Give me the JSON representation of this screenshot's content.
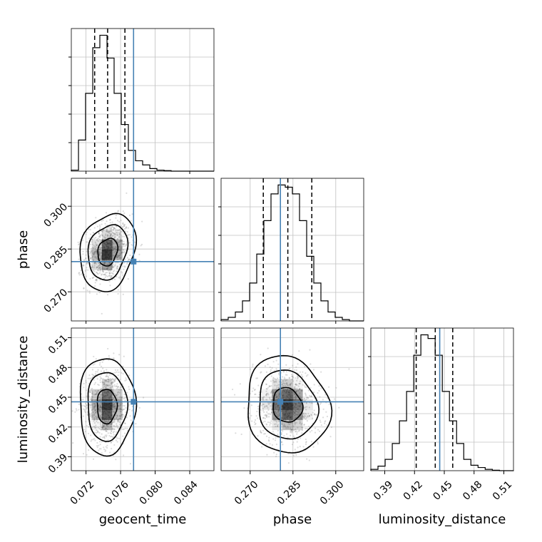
{
  "chart_data": {
    "type": "corner",
    "params": [
      "geocent_time",
      "phase",
      "luminosity_distance"
    ],
    "labels": {
      "geocent_time": "geocent_time",
      "phase": "phase",
      "luminosity_distance": "luminosity_distance"
    },
    "ranges": {
      "geocent_time": [
        0.0703,
        0.0868
      ],
      "phase": [
        0.2598,
        0.3098
      ],
      "luminosity_distance": [
        0.376,
        0.5197
      ]
    },
    "ticks": {
      "geocent_time": [
        0.072,
        0.076,
        0.08,
        0.084
      ],
      "phase": [
        0.27,
        0.285,
        0.3
      ],
      "luminosity_distance": [
        0.39,
        0.42,
        0.45,
        0.48,
        0.51
      ]
    },
    "tick_labels": {
      "geocent_time": [
        "0.072",
        "0.076",
        "0.080",
        "0.084"
      ],
      "phase": [
        "0.270",
        "0.285",
        "0.300"
      ],
      "luminosity_distance": [
        "0.39",
        "0.42",
        "0.45",
        "0.48",
        "0.51"
      ]
    },
    "truths": {
      "geocent_time": 0.0775,
      "phase": 0.2806,
      "luminosity_distance": 0.4454
    },
    "quantiles": {
      "geocent_time": [
        0.073,
        0.0745,
        0.0765
      ],
      "phase": [
        0.2746,
        0.2832,
        0.2916
      ],
      "luminosity_distance": [
        0.4217,
        0.4409,
        0.4585
      ]
    },
    "histograms": {
      "geocent_time": {
        "edges": [
          0.0703,
          0.07113,
          0.07195,
          0.07278,
          0.0736,
          0.07443,
          0.07525,
          0.07608,
          0.0769,
          0.07773,
          0.07855,
          0.07938,
          0.0802,
          0.08103,
          0.08185,
          0.08268,
          0.0835,
          0.08433,
          0.08515,
          0.08598,
          0.0868
        ],
        "counts": [
          2,
          60,
          150,
          238,
          262,
          218,
          150,
          90,
          40,
          20,
          12,
          5,
          2,
          1,
          0,
          0,
          0,
          0,
          0,
          0
        ],
        "ymax": 275
      },
      "phase": {
        "edges": [
          0.2598,
          0.2623,
          0.2648,
          0.2673,
          0.2698,
          0.2723,
          0.2748,
          0.2773,
          0.2798,
          0.2823,
          0.2848,
          0.2873,
          0.2898,
          0.2923,
          0.2948,
          0.2973,
          0.2998,
          0.3023,
          0.3048,
          0.3073,
          0.3098
        ],
        "counts": [
          3,
          8,
          20,
          45,
          85,
          150,
          225,
          285,
          305,
          300,
          285,
          225,
          145,
          85,
          45,
          20,
          8,
          3,
          0,
          0
        ],
        "ymax": 320
      },
      "luminosity_distance": {
        "edges": [
          0.376,
          0.3832,
          0.3904,
          0.3976,
          0.4048,
          0.412,
          0.4192,
          0.4264,
          0.4336,
          0.4408,
          0.448,
          0.4552,
          0.4624,
          0.4696,
          0.4768,
          0.484,
          0.4912,
          0.4984,
          0.5056,
          0.5128,
          0.52
        ],
        "counts": [
          3,
          10,
          25,
          60,
          110,
          175,
          255,
          300,
          292,
          255,
          175,
          110,
          60,
          25,
          12,
          7,
          3,
          1,
          0,
          0
        ],
        "ymax": 315
      }
    },
    "pairs": [
      {
        "x": "geocent_time",
        "y": "phase",
        "center": [
          0.0745,
          0.284
        ],
        "sigma": [
          0.00115,
          0.00485
        ],
        "rho": 0.2,
        "contour_levels": [
          0.39,
          0.86,
          0.98
        ]
      },
      {
        "x": "geocent_time",
        "y": "luminosity_distance",
        "center": [
          0.0744,
          0.441
        ],
        "sigma": [
          0.00115,
          0.0175
        ],
        "rho": 0.0,
        "contour_levels": [
          0.39,
          0.86,
          0.98
        ]
      },
      {
        "x": "phase",
        "y": "luminosity_distance",
        "center": [
          0.283,
          0.442
        ],
        "sigma": [
          0.0052,
          0.0175
        ],
        "rho": -0.1,
        "contour_levels": [
          0.39,
          0.86,
          0.98
        ]
      }
    ],
    "colors": {
      "truth": "#4682b4",
      "contour": "#000000",
      "histogram": "#000000",
      "grid": "#c0c0c0",
      "density": "#000000",
      "samples": "#808080"
    },
    "grid": true
  }
}
